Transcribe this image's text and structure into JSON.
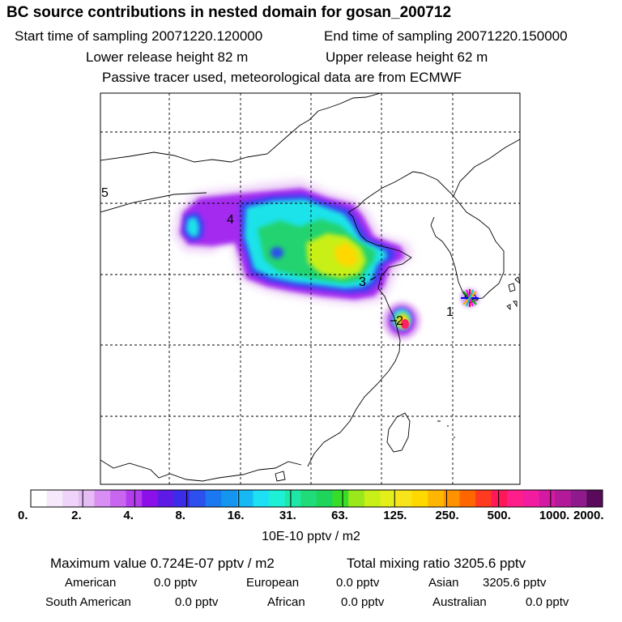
{
  "header": {
    "title": "BC  source contributions in nested domain for gosan_200712",
    "start_time": "Start time of sampling 20071220.120000",
    "end_time": "End time of sampling 20071220.150000",
    "lower_release": "Lower release height   82 m",
    "upper_release": "Upper release height   62 m",
    "tracer_note": "Passive tracer used, meteorological data are from ECMWF"
  },
  "map": {
    "trajectory_labels": [
      "1",
      "2",
      "3",
      "4",
      "5"
    ],
    "receptor_marker_icon": "star-marker-icon",
    "grid": "dashed",
    "plume_colors": {
      "lowest": "#e9c7f7",
      "low": "#a020f0",
      "mid_low": "#3a3af0",
      "mid": "#1ee6e6",
      "mid_high": "#22d36f",
      "high": "#c8f018",
      "very_high": "#ffd800",
      "peak": "#ff2060"
    }
  },
  "colorbar": {
    "tick_labels": [
      "0.",
      "2.",
      "4.",
      "8.",
      "16.",
      "31.",
      "63.",
      "125.",
      "250.",
      "500.",
      "1000.",
      "2000."
    ],
    "unit": "10E-10 pptv / m2",
    "colors": [
      "#ffffff",
      "#f7e8fb",
      "#efd3f8",
      "#e6bcf4",
      "#d88ef2",
      "#c866f0",
      "#b23cee",
      "#8c10e8",
      "#5d1ae6",
      "#3a2ce9",
      "#2c50ee",
      "#1a78f0",
      "#1495f0",
      "#17b9f4",
      "#1de0f4",
      "#1ef0d6",
      "#1fe7a6",
      "#20dc78",
      "#1ed45a",
      "#38dd2a",
      "#9ae81c",
      "#c8f018",
      "#e3ee1b",
      "#f8e41a",
      "#ffd800",
      "#ffb600",
      "#ff9200",
      "#ff6600",
      "#ff3a20",
      "#ff1858",
      "#ff1e8a",
      "#f21ca0",
      "#d41aa3",
      "#b21a9a",
      "#8e1a8b",
      "#5a0a5a"
    ]
  },
  "summary": {
    "max_value": "Maximum value  0.724E-07 pptv / m2",
    "total_mixing": "Total mixing ratio     3205.6 pptv",
    "american_label": "American",
    "american_value": "0.0 pptv",
    "european_label": "European",
    "european_value": "0.0 pptv",
    "asian_label": "Asian",
    "asian_value": "3205.6 pptv",
    "south_american_label": "South American",
    "south_american_value": "0.0 pptv",
    "african_label": "African",
    "african_value": "0.0 pptv",
    "australian_label": "Australian",
    "australian_value": "0.0 pptv"
  }
}
